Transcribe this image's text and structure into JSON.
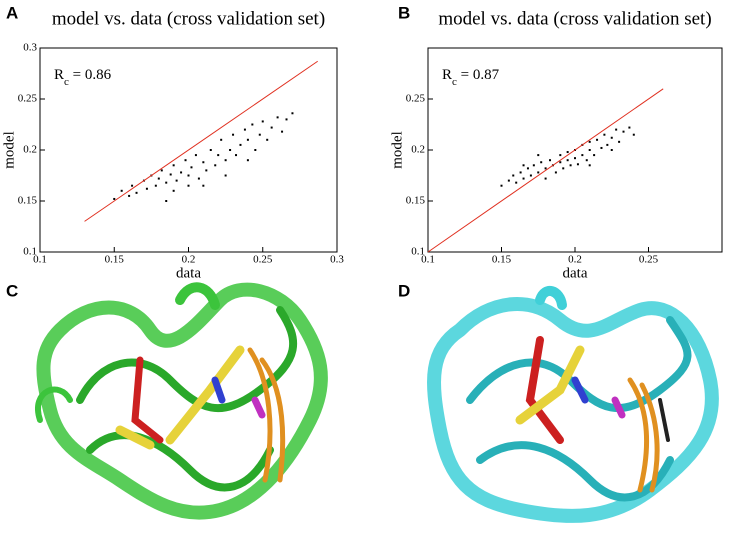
{
  "chart_data": [
    {
      "type": "scatter",
      "label": "A",
      "title": "model vs. data (cross validation set)",
      "x_label": "data",
      "y_label": "model",
      "annotation": [
        "R",
        "c",
        " = 0.86"
      ],
      "xlim": [
        0.1,
        0.3
      ],
      "ylim": [
        0.1,
        0.3
      ],
      "xticks": [
        0.1,
        0.15,
        0.2,
        0.25,
        0.3
      ],
      "yticks": [
        0.1,
        0.15,
        0.2,
        0.25,
        0.3
      ],
      "color": "#000000",
      "x": [
        0.15,
        0.155,
        0.16,
        0.162,
        0.165,
        0.17,
        0.172,
        0.175,
        0.178,
        0.18,
        0.182,
        0.185,
        0.188,
        0.19,
        0.192,
        0.195,
        0.198,
        0.2,
        0.2,
        0.202,
        0.205,
        0.207,
        0.21,
        0.212,
        0.215,
        0.218,
        0.22,
        0.222,
        0.225,
        0.228,
        0.23,
        0.232,
        0.235,
        0.238,
        0.24,
        0.243,
        0.245,
        0.248,
        0.25,
        0.253,
        0.256,
        0.26,
        0.263,
        0.266,
        0.27,
        0.19,
        0.185,
        0.21,
        0.225,
        0.24
      ],
      "values": [
        0.152,
        0.16,
        0.155,
        0.165,
        0.158,
        0.17,
        0.162,
        0.175,
        0.165,
        0.172,
        0.18,
        0.168,
        0.176,
        0.185,
        0.17,
        0.178,
        0.19,
        0.175,
        0.165,
        0.183,
        0.195,
        0.172,
        0.188,
        0.18,
        0.2,
        0.185,
        0.195,
        0.21,
        0.19,
        0.2,
        0.215,
        0.195,
        0.205,
        0.22,
        0.21,
        0.225,
        0.2,
        0.215,
        0.228,
        0.21,
        0.222,
        0.232,
        0.218,
        0.23,
        0.236,
        0.16,
        0.15,
        0.165,
        0.175,
        0.19
      ],
      "line": {
        "color": "#e03020",
        "x": [
          0.13,
          0.287
        ],
        "values": [
          0.13,
          0.287
        ]
      }
    },
    {
      "type": "scatter",
      "label": "B",
      "title": "model vs. data (cross validation set)",
      "x_label": "data",
      "y_label": "model",
      "annotation": [
        "R",
        "c",
        " = 0.87"
      ],
      "xlim": [
        0.1,
        0.3
      ],
      "ylim": [
        0.1,
        0.3
      ],
      "xticks": [
        0.1,
        0.15,
        0.2,
        0.25
      ],
      "yticks": [
        0.1,
        0.15,
        0.2,
        0.25
      ],
      "color": "#000000",
      "x": [
        0.15,
        0.155,
        0.158,
        0.16,
        0.163,
        0.165,
        0.168,
        0.17,
        0.172,
        0.175,
        0.177,
        0.18,
        0.18,
        0.183,
        0.185,
        0.187,
        0.19,
        0.19,
        0.192,
        0.195,
        0.195,
        0.197,
        0.2,
        0.2,
        0.202,
        0.205,
        0.205,
        0.208,
        0.21,
        0.21,
        0.213,
        0.215,
        0.218,
        0.22,
        0.222,
        0.225,
        0.228,
        0.23,
        0.233,
        0.237,
        0.24,
        0.175,
        0.165,
        0.21,
        0.225
      ],
      "values": [
        0.165,
        0.17,
        0.175,
        0.168,
        0.178,
        0.172,
        0.182,
        0.175,
        0.185,
        0.178,
        0.188,
        0.182,
        0.172,
        0.19,
        0.185,
        0.178,
        0.195,
        0.188,
        0.182,
        0.198,
        0.19,
        0.185,
        0.2,
        0.192,
        0.186,
        0.205,
        0.195,
        0.19,
        0.208,
        0.2,
        0.195,
        0.21,
        0.202,
        0.215,
        0.205,
        0.212,
        0.22,
        0.208,
        0.218,
        0.222,
        0.215,
        0.195,
        0.185,
        0.185,
        0.2
      ],
      "line": {
        "color": "#e03020",
        "x": [
          0.1,
          0.26
        ],
        "values": [
          0.1,
          0.26
        ]
      }
    }
  ],
  "images": [
    {
      "label": "C"
    },
    {
      "label": "D"
    }
  ]
}
